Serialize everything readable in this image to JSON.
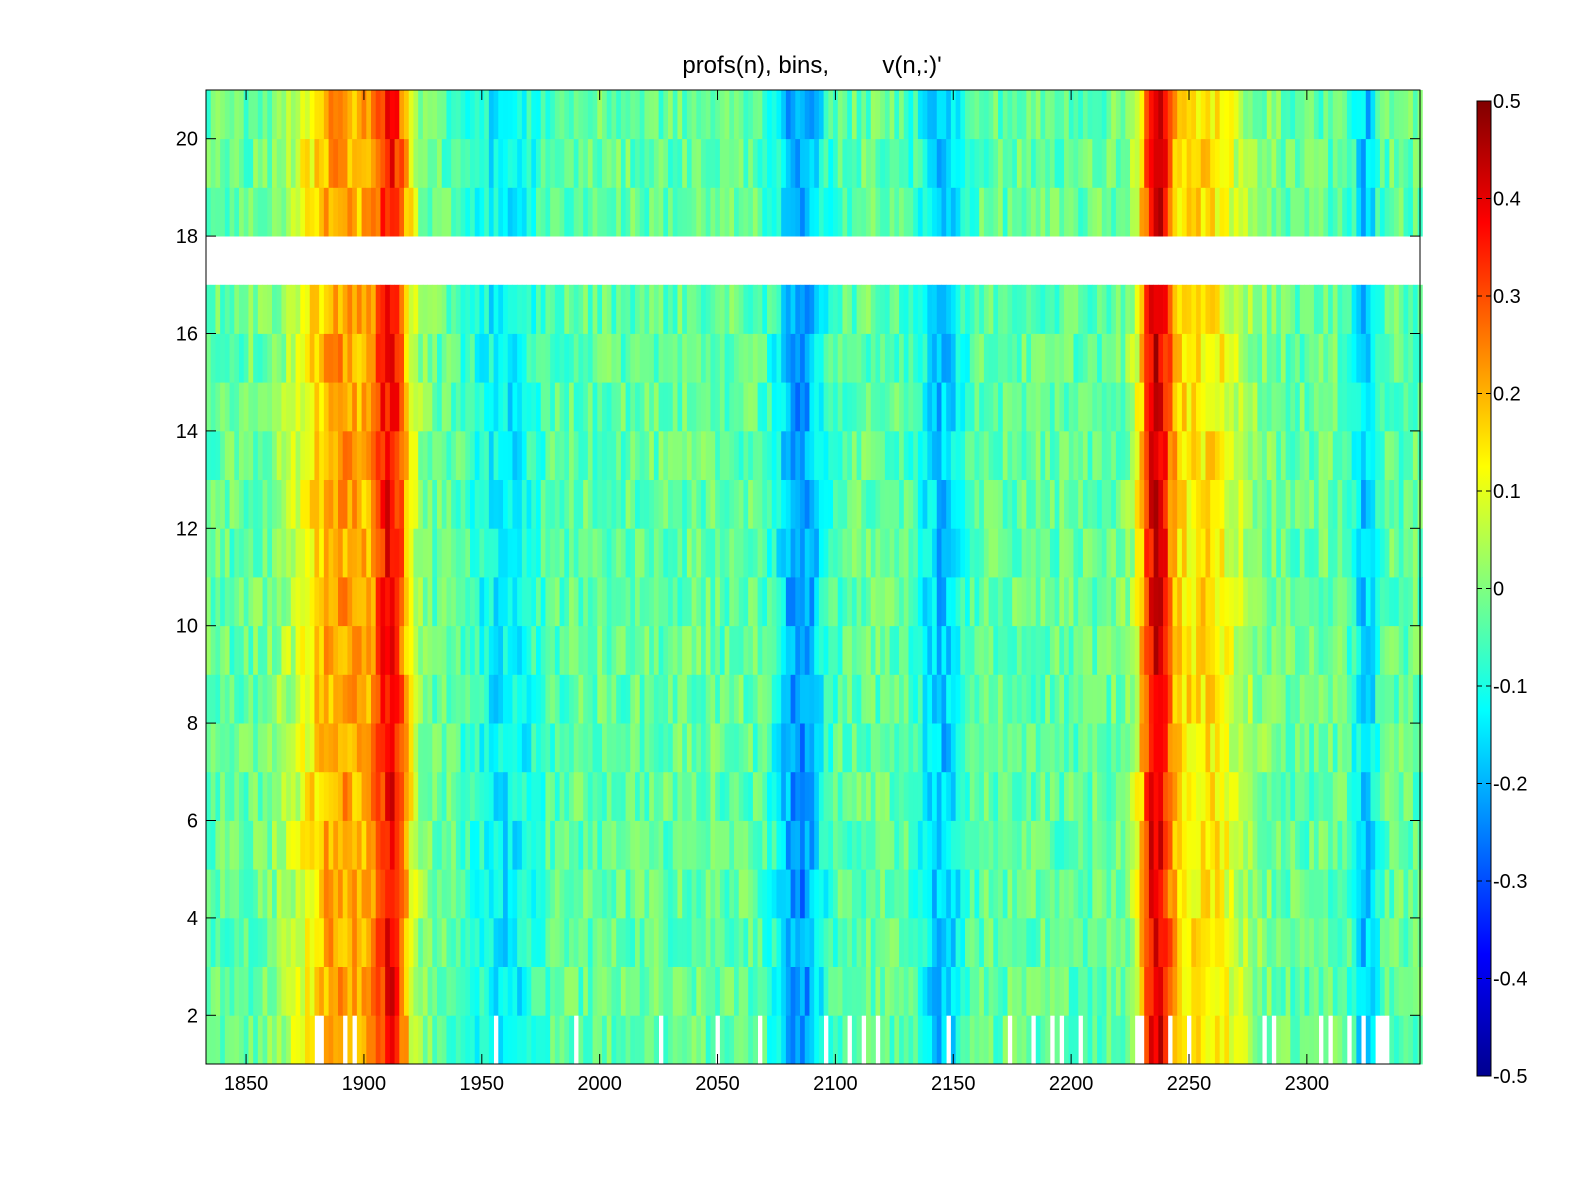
{
  "chart_data": {
    "type": "heatmap",
    "title": "profs(n), bins,        v(n,:)'",
    "xlabel": "",
    "ylabel": "",
    "xlim": [
      1833,
      2348
    ],
    "ylim": [
      1,
      21
    ],
    "x_ticks": [
      1850,
      1900,
      1950,
      2000,
      2050,
      2100,
      2150,
      2200,
      2250,
      2300
    ],
    "y_ticks": [
      2,
      4,
      6,
      8,
      10,
      12,
      14,
      16,
      18,
      20
    ],
    "x_tick_labels": [
      "1850",
      "1900",
      "1950",
      "2000",
      "2050",
      "2100",
      "2150",
      "2200",
      "2250",
      "2300"
    ],
    "y_tick_labels": [
      "2",
      "4",
      "6",
      "8",
      "10",
      "12",
      "14",
      "16",
      "18",
      "20"
    ],
    "colorbar": {
      "colormap": "jet",
      "range": [
        -0.5,
        0.5
      ],
      "ticks": [
        0.5,
        0.4,
        0.3,
        0.2,
        0.1,
        0,
        -0.1,
        -0.2,
        -0.3,
        -0.4,
        -0.5
      ],
      "tick_labels": [
        "0.5",
        "0.4",
        "0.3",
        "0.2",
        "0.1",
        "0",
        "-0.1",
        "-0.2",
        "-0.3",
        "-0.4",
        "-0.5"
      ]
    },
    "grid": false,
    "rows": 20,
    "missing_rows": [
      17
    ],
    "features": [
      {
        "x_center": 1890,
        "width": 40,
        "value": 0.22
      },
      {
        "x_center": 1912,
        "width": 16,
        "value": 0.3
      },
      {
        "x_center": 1960,
        "width": 30,
        "value": -0.14
      },
      {
        "x_center": 2085,
        "width": 20,
        "value": -0.24
      },
      {
        "x_center": 2145,
        "width": 20,
        "value": -0.18
      },
      {
        "x_center": 2236,
        "width": 14,
        "value": 0.35
      },
      {
        "x_center": 2255,
        "width": 40,
        "value": 0.15
      },
      {
        "x_center": 2325,
        "width": 10,
        "value": -0.18
      }
    ],
    "background_value": -0.03
  }
}
